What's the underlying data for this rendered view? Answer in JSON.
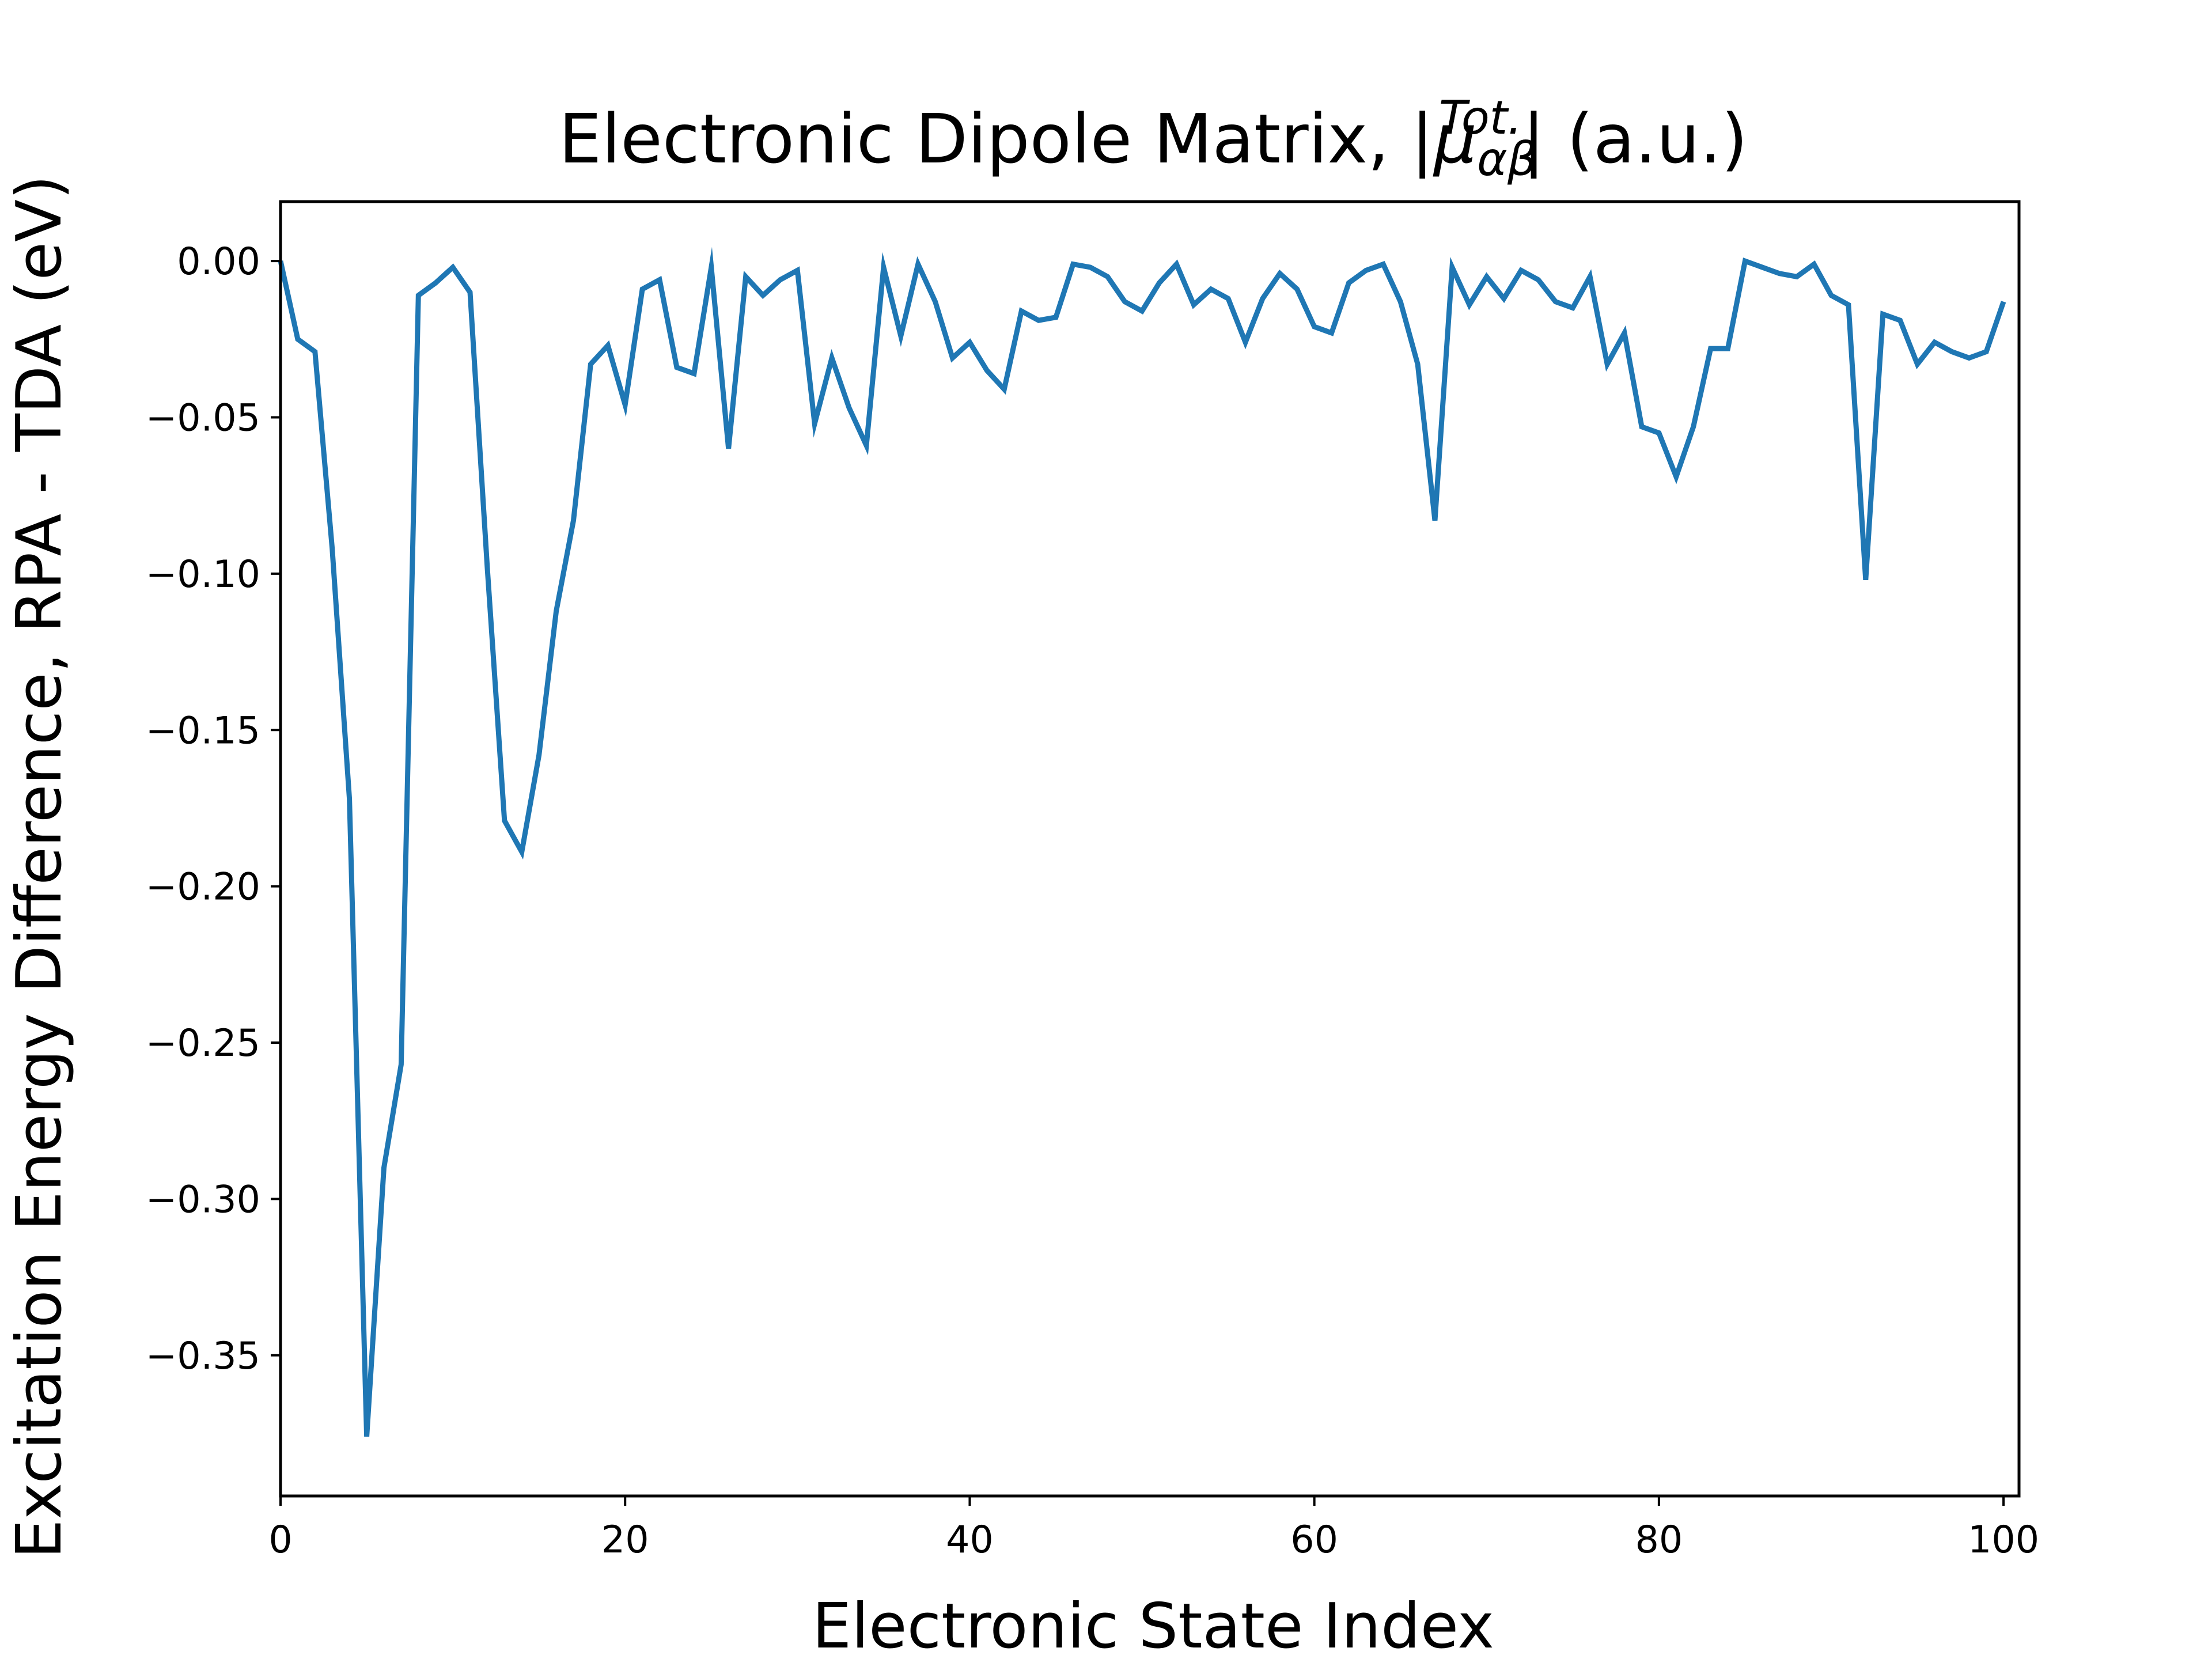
{
  "chart_data": {
    "type": "line",
    "title": {
      "prefix": "Electronic Dipole Matrix, |",
      "symbol": "μ",
      "subscript": "αβ",
      "superscript": "Tot.",
      "suffix": "| (a.u.)"
    },
    "xlabel": "Electronic State Index",
    "ylabel": "Excitation Energy Difference, RPA - TDA (eV)",
    "xlim": [
      0,
      100.9
    ],
    "ylim": [
      -0.395,
      0.019
    ],
    "xticks": [
      0,
      20,
      40,
      60,
      80,
      100
    ],
    "xtick_labels": [
      "0",
      "20",
      "40",
      "60",
      "80",
      "100"
    ],
    "yticks": [
      0.0,
      -0.05,
      -0.1,
      -0.15,
      -0.2,
      -0.25,
      -0.3,
      -0.35
    ],
    "ytick_labels": [
      "0.00",
      "−0.05",
      "−0.10",
      "−0.15",
      "−0.20",
      "−0.25",
      "−0.30",
      "−0.35"
    ],
    "grid": false,
    "legend": "none",
    "series": [
      {
        "color": "#1f77b4",
        "x": [
          0,
          1,
          2,
          3,
          4,
          5,
          6,
          7,
          8,
          9,
          10,
          11,
          12,
          13,
          14,
          15,
          16,
          17,
          18,
          19,
          20,
          21,
          22,
          23,
          24,
          25,
          26,
          27,
          28,
          29,
          30,
          31,
          32,
          33,
          34,
          35,
          36,
          37,
          38,
          39,
          40,
          41,
          42,
          43,
          44,
          45,
          46,
          47,
          48,
          49,
          50,
          51,
          52,
          53,
          54,
          55,
          56,
          57,
          58,
          59,
          60,
          61,
          62,
          63,
          64,
          65,
          66,
          67,
          68,
          69,
          70,
          71,
          72,
          73,
          74,
          75,
          76,
          77,
          78,
          79,
          80,
          81,
          82,
          83,
          84,
          85,
          86,
          87,
          88,
          89,
          90,
          91,
          92,
          93,
          94,
          95,
          96,
          97,
          98,
          99,
          100
        ],
        "y": [
          0.0,
          -0.025,
          -0.029,
          -0.092,
          -0.172,
          -0.376,
          -0.29,
          -0.257,
          -0.011,
          -0.007,
          -0.002,
          -0.01,
          -0.098,
          -0.179,
          -0.189,
          -0.158,
          -0.112,
          -0.083,
          -0.033,
          -0.027,
          -0.046,
          -0.009,
          -0.006,
          -0.034,
          -0.036,
          -0.002,
          -0.06,
          -0.005,
          -0.011,
          -0.006,
          -0.003,
          -0.052,
          -0.031,
          -0.047,
          -0.059,
          -0.002,
          -0.024,
          -0.001,
          -0.013,
          -0.031,
          -0.026,
          -0.035,
          -0.041,
          -0.016,
          -0.019,
          -0.018,
          -0.001,
          -0.002,
          -0.005,
          -0.013,
          -0.016,
          -0.007,
          -0.001,
          -0.014,
          -0.009,
          -0.012,
          -0.026,
          -0.012,
          -0.004,
          -0.009,
          -0.021,
          -0.023,
          -0.007,
          -0.003,
          -0.001,
          -0.013,
          -0.033,
          -0.083,
          -0.002,
          -0.014,
          -0.005,
          -0.012,
          -0.003,
          -0.006,
          -0.013,
          -0.015,
          -0.005,
          -0.033,
          -0.023,
          -0.053,
          -0.055,
          -0.069,
          -0.053,
          -0.028,
          -0.028,
          0.0,
          -0.002,
          -0.004,
          -0.005,
          -0.001,
          -0.011,
          -0.014,
          -0.102,
          -0.017,
          -0.019,
          -0.033,
          -0.026,
          -0.029,
          -0.031,
          -0.029,
          -0.013
        ]
      }
    ]
  }
}
